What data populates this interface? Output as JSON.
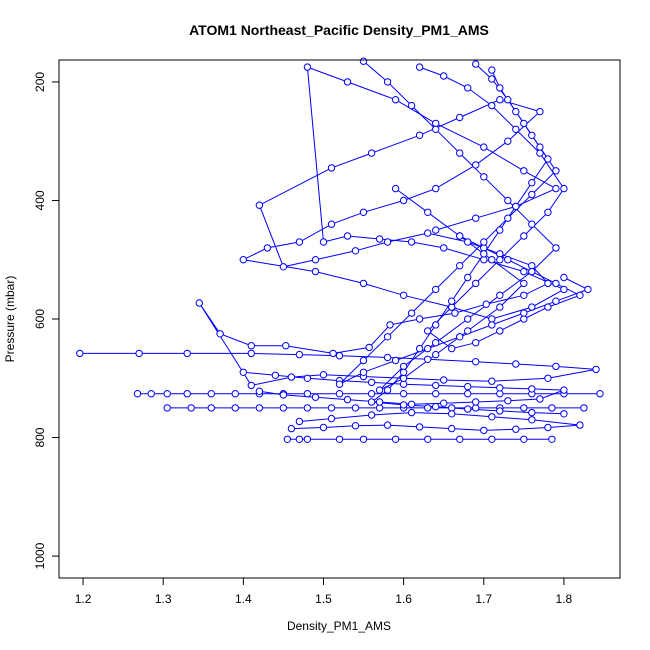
{
  "chart_data": {
    "type": "line",
    "title": "ATOM1 Northeast_Pacific Density_PM1_AMS",
    "xlabel": "Density_PM1_AMS",
    "ylabel": "Pressure (mbar)",
    "xlim": [
      1.17,
      1.87
    ],
    "ylim": [
      1037,
      163
    ],
    "y_reversed": true,
    "x_ticks": [
      1.2,
      1.3,
      1.4,
      1.5,
      1.6,
      1.7,
      1.8
    ],
    "x_tick_labels": [
      "1.2",
      "1.3",
      "1.4",
      "1.5",
      "1.6",
      "1.7",
      "1.8"
    ],
    "y_ticks": [
      200,
      400,
      600,
      800,
      1000
    ],
    "y_tick_labels": [
      "200",
      "400",
      "600",
      "800",
      "1000"
    ],
    "grid": false,
    "legend": "none",
    "colors": {
      "series": "#0000ff",
      "axis": "#000000"
    },
    "series": [
      {
        "markers": "open-circle",
        "x": [
          1.196,
          1.27,
          1.33,
          1.41,
          1.47,
          1.52,
          1.58,
          1.63,
          1.69,
          1.74,
          1.79,
          1.84,
          1.78,
          1.71,
          1.65,
          1.6,
          1.55,
          1.5,
          1.46,
          1.41,
          1.345,
          1.371,
          1.41,
          1.453,
          1.512,
          1.557,
          1.583,
          1.62,
          1.664,
          1.703,
          1.75,
          1.78,
          1.76,
          1.72,
          1.68,
          1.63,
          1.58,
          1.54,
          1.49,
          1.45,
          1.42,
          1.51,
          1.56,
          1.62,
          1.67,
          1.72,
          1.77,
          1.73,
          1.69,
          1.64,
          1.6,
          1.55,
          1.51,
          1.47,
          1.43,
          1.4,
          1.49,
          1.55,
          1.6,
          1.66,
          1.71,
          1.76,
          1.8,
          1.75,
          1.7,
          1.65,
          1.61,
          1.57,
          1.53,
          1.5,
          1.48,
          1.53,
          1.59,
          1.64,
          1.7,
          1.75,
          1.79,
          1.74,
          1.69,
          1.64
        ],
        "y": [
          658,
          658,
          658,
          658,
          660,
          662,
          665,
          668,
          672,
          676,
          680,
          685,
          700,
          705,
          703,
          700,
          697,
          694,
          698,
          712,
          573,
          625,
          645,
          645,
          658,
          648,
          610,
          600,
          590,
          575,
          560,
          540,
          510,
          490,
          470,
          455,
          470,
          485,
          500,
          512,
          408,
          345,
          320,
          290,
          260,
          230,
          250,
          300,
          340,
          380,
          400,
          420,
          440,
          470,
          480,
          500,
          520,
          540,
          560,
          580,
          600,
          580,
          550,
          520,
          500,
          480,
          470,
          465,
          460,
          470,
          175,
          200,
          230,
          270,
          310,
          350,
          380,
          410,
          430,
          450
        ]
      },
      {
        "markers": "open-circle",
        "x": [
          1.268,
          1.285,
          1.305,
          1.33,
          1.36,
          1.39,
          1.42,
          1.45,
          1.48,
          1.52,
          1.56,
          1.6,
          1.64,
          1.68,
          1.72,
          1.76,
          1.8,
          1.845
        ],
        "y": [
          726,
          726,
          726,
          726,
          726,
          726,
          726,
          726,
          726,
          726,
          726,
          726,
          726,
          726,
          726,
          726,
          726,
          726
        ]
      },
      {
        "markers": "open-circle",
        "x": [
          1.305,
          1.335,
          1.36,
          1.39,
          1.42,
          1.45,
          1.48,
          1.51,
          1.54,
          1.57,
          1.6,
          1.63,
          1.66,
          1.69,
          1.72,
          1.75,
          1.785,
          1.825
        ],
        "y": [
          750,
          750,
          750,
          750,
          750,
          750,
          750,
          750,
          750,
          750,
          750,
          750,
          750,
          750,
          750,
          750,
          750,
          750
        ]
      },
      {
        "markers": "open-circle",
        "x": [
          1.455,
          1.47,
          1.48,
          1.52,
          1.55,
          1.59,
          1.63,
          1.67,
          1.71,
          1.75,
          1.785
        ],
        "y": [
          803,
          803,
          803,
          803,
          803,
          803,
          803,
          803,
          803,
          803,
          803
        ]
      },
      {
        "markers": "open-circle",
        "x": [
          1.46,
          1.5,
          1.54,
          1.58,
          1.62,
          1.66,
          1.7,
          1.74,
          1.78,
          1.82,
          1.76,
          1.71,
          1.66,
          1.61,
          1.56,
          1.51,
          1.47
        ],
        "y": [
          785,
          783,
          780,
          779,
          782,
          785,
          788,
          786,
          783,
          779,
          770,
          765,
          760,
          758,
          762,
          768,
          773
        ]
      },
      {
        "markers": "open-circle",
        "x": [
          1.4,
          1.44,
          1.48,
          1.52,
          1.56,
          1.6,
          1.64,
          1.68,
          1.72,
          1.76,
          1.8,
          1.77,
          1.73,
          1.69,
          1.65,
          1.61,
          1.57,
          1.53,
          1.49,
          1.45,
          1.42
        ],
        "y": [
          690,
          695,
          700,
          704,
          707,
          710,
          712,
          714,
          716,
          718,
          720,
          735,
          738,
          740,
          742,
          744,
          740,
          736,
          732,
          728,
          722
        ]
      },
      {
        "markers": "open-circle",
        "x": [
          1.55,
          1.58,
          1.61,
          1.64,
          1.67,
          1.7,
          1.73,
          1.76,
          1.79,
          1.76,
          1.72,
          1.68,
          1.64,
          1.6,
          1.57,
          1.6,
          1.64,
          1.68,
          1.72,
          1.75,
          1.71,
          1.67,
          1.63,
          1.59
        ],
        "y": [
          165,
          200,
          240,
          280,
          320,
          360,
          400,
          440,
          480,
          520,
          560,
          600,
          640,
          680,
          720,
          700,
          660,
          620,
          580,
          540,
          500,
          460,
          420,
          380
        ]
      },
      {
        "markers": "open-circle",
        "x": [
          1.62,
          1.65,
          1.68,
          1.71,
          1.74,
          1.77,
          1.8,
          1.78,
          1.75,
          1.72,
          1.69,
          1.66,
          1.63,
          1.66,
          1.69,
          1.72,
          1.75,
          1.78,
          1.82,
          1.79,
          1.76,
          1.73,
          1.7,
          1.67
        ],
        "y": [
          175,
          190,
          210,
          240,
          280,
          320,
          380,
          420,
          460,
          500,
          540,
          580,
          620,
          650,
          640,
          620,
          600,
          580,
          560,
          540,
          520,
          500,
          480,
          460
        ]
      },
      {
        "markers": "open-circle",
        "x": [
          1.69,
          1.71,
          1.73,
          1.75,
          1.77,
          1.79,
          1.76,
          1.73,
          1.7,
          1.67,
          1.64,
          1.61,
          1.58,
          1.55,
          1.52,
          1.55,
          1.59,
          1.63,
          1.67,
          1.71,
          1.75,
          1.79,
          1.83,
          1.8
        ],
        "y": [
          170,
          195,
          230,
          270,
          310,
          350,
          390,
          430,
          470,
          510,
          550,
          590,
          630,
          670,
          710,
          690,
          670,
          650,
          630,
          610,
          590,
          570,
          550,
          530
        ]
      },
      {
        "markers": "open-circle",
        "x": [
          1.71,
          1.72,
          1.74,
          1.76,
          1.78,
          1.76,
          1.74,
          1.72,
          1.7,
          1.68,
          1.66,
          1.64,
          1.62,
          1.6,
          1.58,
          1.56,
          1.6,
          1.64,
          1.68,
          1.72,
          1.76,
          1.8
        ],
        "y": [
          180,
          210,
          250,
          290,
          330,
          370,
          410,
          450,
          490,
          530,
          570,
          610,
          650,
          690,
          720,
          740,
          745,
          748,
          752,
          755,
          758,
          760
        ]
      }
    ]
  }
}
